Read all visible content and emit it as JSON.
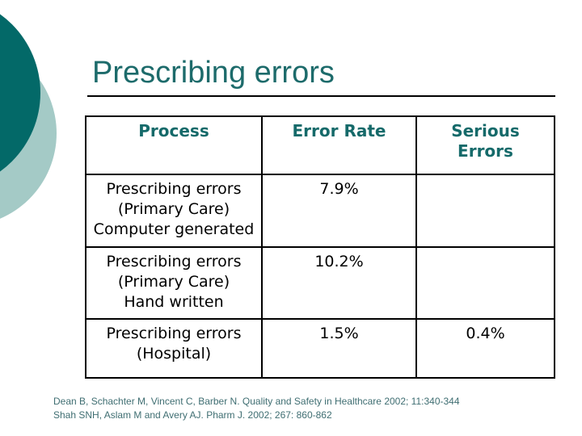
{
  "title": "Prescribing errors",
  "table": {
    "headers": {
      "process": "Process",
      "error_rate": "Error Rate",
      "serious": "Serious\nErrors"
    },
    "rows": [
      {
        "process": "Prescribing errors\n(Primary Care)\nComputer generated",
        "error_rate": "7.9%",
        "serious": ""
      },
      {
        "process": "Prescribing errors\n(Primary Care)\nHand written",
        "error_rate": "10.2%",
        "serious": ""
      },
      {
        "process": "Prescribing errors\n(Hospital)",
        "error_rate": "1.5%",
        "serious": "0.4%"
      }
    ]
  },
  "footer": {
    "line1": "Dean B, Schachter M, Vincent C, Barber N. Quality and Safety in Healthcare 2002; 11:340-344",
    "line2": "Shah SNH, Aslam M and Avery AJ. Pharm J. 2002; 267: 860-862"
  },
  "colors": {
    "accent_dark_teal": "#036968",
    "accent_light_teal": "#a4cac6",
    "title_teal": "#1d6b6b",
    "header_teal": "#156a6a",
    "footer_teal": "#3f6e72",
    "table_border": "#000000"
  }
}
